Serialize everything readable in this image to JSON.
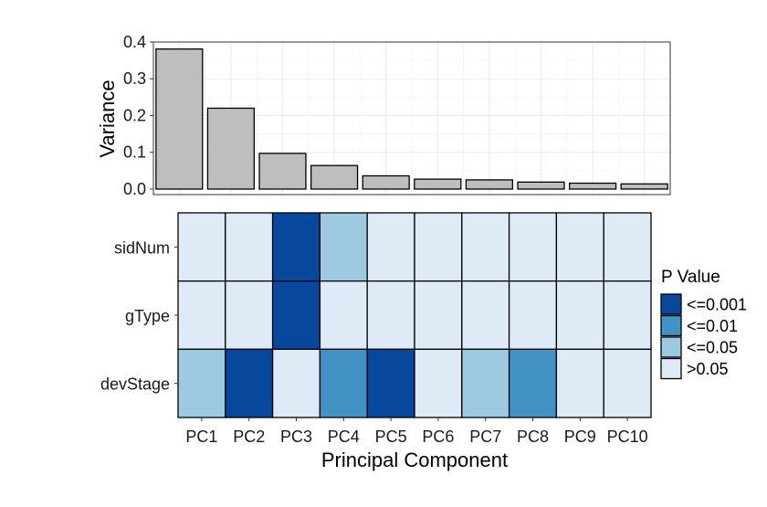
{
  "chart_data": [
    {
      "type": "bar",
      "categories": [
        "PC1",
        "PC2",
        "PC3",
        "PC4",
        "PC5",
        "PC6",
        "PC7",
        "PC8",
        "PC9",
        "PC10"
      ],
      "values": [
        0.381,
        0.22,
        0.097,
        0.064,
        0.036,
        0.027,
        0.025,
        0.019,
        0.016,
        0.014
      ],
      "ylabel": "Variance",
      "ylim": [
        -0.015,
        0.4
      ],
      "yticks": [
        "0.0",
        "0.1",
        "0.2",
        "0.3",
        "0.4"
      ],
      "grid": true,
      "bar_fill": "#bebebe",
      "bar_stroke": "#000000"
    },
    {
      "type": "heatmap",
      "x": [
        "PC1",
        "PC2",
        "PC3",
        "PC4",
        "PC5",
        "PC6",
        "PC7",
        "PC8",
        "PC9",
        "PC10"
      ],
      "y": [
        "sidNum",
        "gType",
        "devStage"
      ],
      "xlabel": "Principal Component",
      "values": [
        [
          ">0.05",
          ">0.05",
          "<=0.001",
          "<=0.05",
          ">0.05",
          ">0.05",
          ">0.05",
          ">0.05",
          ">0.05",
          ">0.05"
        ],
        [
          ">0.05",
          ">0.05",
          "<=0.001",
          ">0.05",
          ">0.05",
          ">0.05",
          ">0.05",
          ">0.05",
          ">0.05",
          ">0.05"
        ],
        [
          "<=0.05",
          "<=0.001",
          ">0.05",
          "<=0.01",
          "<=0.001",
          ">0.05",
          "<=0.05",
          "<=0.01",
          ">0.05",
          ">0.05"
        ]
      ],
      "legend": {
        "title": "P Value",
        "position": "right",
        "entries": [
          {
            "label": "<=0.001",
            "color": "#08489c"
          },
          {
            "label": "<=0.01",
            "color": "#4292c6"
          },
          {
            "label": "<=0.05",
            "color": "#9ecae1"
          },
          {
            "label": ">0.05",
            "color": "#deebf7"
          }
        ]
      }
    }
  ]
}
